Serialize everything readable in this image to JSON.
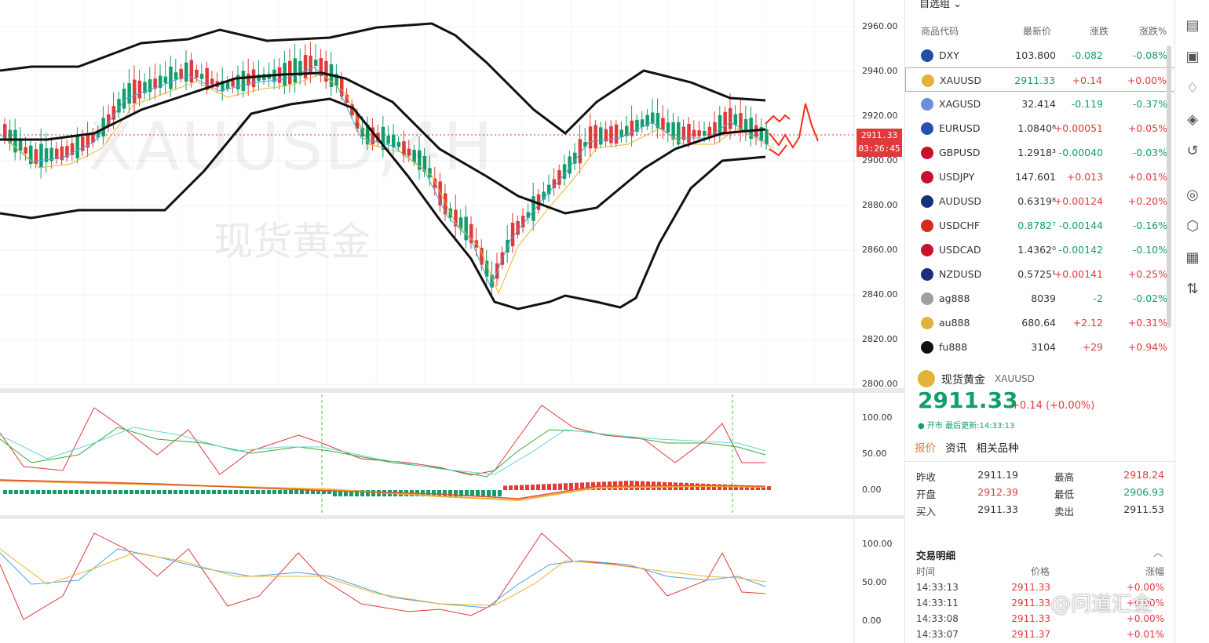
{
  "chart": {
    "watermark_symbol": "XAUUSD,4H",
    "watermark_name": "现货黄金",
    "price_tag": "2911.33",
    "countdown": "03:26:45",
    "price_axis": [
      "2960.00",
      "2940.00",
      "2920.00",
      "2900.00",
      "2880.00",
      "2860.00",
      "2840.00",
      "2820.00",
      "2800.00"
    ],
    "kdj_axis": [
      "100.00",
      "50.00",
      "0.00"
    ],
    "rsi_axis": [
      "100.00",
      "50.00",
      "0.00"
    ],
    "colors": {
      "up": "#e03a3a",
      "down": "#129e6a",
      "bands": "#111111",
      "ma_fast": "#4aa3df",
      "ma_slow": "#f0b030",
      "arrows": "#ff2a1a"
    }
  },
  "watchlist": {
    "title": "自选组",
    "headers": [
      "商品代码",
      "最新价",
      "涨跌",
      "涨跌%"
    ],
    "rows": [
      {
        "symbol": "DXY",
        "price": "103.800",
        "chg": "-0.082",
        "pct": "-0.08%",
        "dir": "dn",
        "flag": "#1f4fa8"
      },
      {
        "symbol": "XAUUSD",
        "price": "2911.33",
        "chg": "+0.14",
        "pct": "+0.00%",
        "dir": "up",
        "flag": "#e2b33a"
      },
      {
        "symbol": "XAGUSD",
        "price": "32.414",
        "chg": "-0.119",
        "pct": "-0.37%",
        "dir": "dn",
        "flag": "#6d8fd8"
      },
      {
        "symbol": "EURUSD",
        "price": "1.0840⁸",
        "chg": "+0.00051",
        "pct": "+0.05%",
        "dir": "up",
        "flag": "#2b4fb0"
      },
      {
        "symbol": "GBPUSD",
        "price": "1.2918³",
        "chg": "-0.00040",
        "pct": "-0.03%",
        "dir": "dn",
        "flag": "#c8102e"
      },
      {
        "symbol": "USDJPY",
        "price": "147.601",
        "chg": "+0.013",
        "pct": "+0.01%",
        "dir": "up",
        "flag": "#c8102e"
      },
      {
        "symbol": "AUDUSD",
        "price": "0.6319⁸",
        "chg": "+0.00124",
        "pct": "+0.20%",
        "dir": "up",
        "flag": "#1a2f7a"
      },
      {
        "symbol": "USDCHF",
        "price": "0.8782⁷",
        "chg": "-0.00144",
        "pct": "-0.16%",
        "dir": "dn",
        "flag": "#d52b1e"
      },
      {
        "symbol": "USDCAD",
        "price": "1.4362⁰",
        "chg": "-0.00142",
        "pct": "-0.10%",
        "dir": "dn",
        "flag": "#c8102e"
      },
      {
        "symbol": "NZDUSD",
        "price": "0.5725¹",
        "chg": "+0.00141",
        "pct": "+0.25%",
        "dir": "up",
        "flag": "#1a2f7a"
      },
      {
        "symbol": "ag888",
        "price": "8039",
        "chg": "-2",
        "pct": "-0.02%",
        "dir": "dn",
        "flag": "#9aa0a6"
      },
      {
        "symbol": "au888",
        "price": "680.64",
        "chg": "+2.12",
        "pct": "+0.31%",
        "dir": "up",
        "flag": "#e2b33a"
      },
      {
        "symbol": "fu888",
        "price": "3104",
        "chg": "+29",
        "pct": "+0.94%",
        "dir": "up",
        "flag": "#111111"
      }
    ]
  },
  "quote": {
    "name": "现货黄金",
    "code": "XAUUSD",
    "price": "2911.33",
    "change": "+0.14 (+0.00%)",
    "status": "● 开市 最后更新:14:33:13",
    "tabs": [
      "报价",
      "资讯",
      "相关品种"
    ],
    "stats": [
      {
        "l1": "昨收",
        "v1": "2911.19",
        "d1": "",
        "l2": "最高",
        "v2": "2918.24",
        "d2": "up"
      },
      {
        "l1": "开盘",
        "v1": "2912.39",
        "d1": "up",
        "l2": "最低",
        "v2": "2906.93",
        "d2": "dn"
      },
      {
        "l1": "买入",
        "v1": "2911.33",
        "d1": "",
        "l2": "卖出",
        "v2": "2911.53",
        "d2": ""
      }
    ]
  },
  "trades": {
    "title": "交易明细",
    "headers": [
      "时间",
      "价格",
      "涨幅"
    ],
    "rows": [
      {
        "time": "14:33:13",
        "price": "2911.33",
        "pct": "+0.00%"
      },
      {
        "time": "14:33:11",
        "price": "2911.33",
        "pct": "+0.00%"
      },
      {
        "time": "14:33:08",
        "price": "2911.33",
        "pct": "+0.00%"
      },
      {
        "time": "14:33:07",
        "price": "2911.37",
        "pct": "+0.01%"
      }
    ]
  },
  "watermark_logo": "@问道汇金",
  "toolbar_icons": [
    "document-icon",
    "calendar-icon",
    "bell-icon",
    "layers-icon",
    "history-icon",
    "target-icon",
    "cube-icon",
    "grid-icon",
    "compare-icon"
  ]
}
